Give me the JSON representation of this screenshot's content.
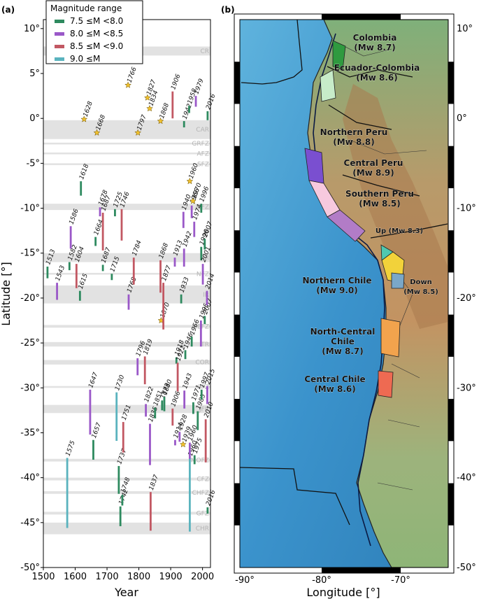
{
  "panel_a_label": "(a)",
  "panel_b_label": "(b)",
  "chart_data": [
    {
      "type": "bar",
      "xlabel": "Year",
      "ylabel": "Latitude [°]",
      "xlim": [
        1500,
        2025
      ],
      "ylim": [
        -50,
        11
      ],
      "x_ticks": [
        1500,
        1600,
        1700,
        1800,
        1900,
        2000
      ],
      "y_ticks": [
        {
          "v": 10,
          "t": "10°"
        },
        {
          "v": 5,
          "t": "5°"
        },
        {
          "v": 0,
          "t": "0°"
        },
        {
          "v": -5,
          "t": "-5°"
        },
        {
          "v": -10,
          "t": "-10°"
        },
        {
          "v": -15,
          "t": "-15°"
        },
        {
          "v": -20,
          "t": "-20°"
        },
        {
          "v": -25,
          "t": "-25°"
        },
        {
          "v": -30,
          "t": "-30°"
        },
        {
          "v": -35,
          "t": "-35°"
        },
        {
          "v": -40,
          "t": "-40°"
        },
        {
          "v": -45,
          "t": "-45°"
        },
        {
          "v": -50,
          "t": "-50°"
        }
      ],
      "legend_title": "Magnitude range",
      "legend_position": "top-left",
      "magnitude_classes": [
        {
          "label": "7.5 ≤M <8.0",
          "color": "#2e8a5f"
        },
        {
          "label": "8.0 ≤M <8.5",
          "color": "#9a58c8"
        },
        {
          "label": "8.5 ≤M <9.0",
          "color": "#c25863"
        },
        {
          "label": "9.0 ≤M",
          "color": "#5ab3be"
        }
      ],
      "zones": [
        {
          "name": "CR",
          "from": 8.0,
          "to": 7.0
        },
        {
          "name": "CAR",
          "from": -0.2,
          "to": -2.3
        },
        {
          "name": "GRFZ",
          "from": -2.7,
          "to": -2.9
        },
        {
          "name": "AFZ",
          "from": -3.8,
          "to": -4.0
        },
        {
          "name": "SFZ",
          "from": -5.0,
          "to": -5.2
        },
        {
          "name": "MFZ",
          "from": -9.5,
          "to": -10.2
        },
        {
          "name": "NR",
          "from": -15.0,
          "to": -16.0
        },
        {
          "name": "NFZ",
          "from": -17.2,
          "to": -17.4
        },
        {
          "name": "IR",
          "from": -18.6,
          "to": -20.6
        },
        {
          "name": "MEFZ",
          "from": -23.0,
          "to": -23.3
        },
        {
          "name": "TR",
          "from": -24.9,
          "to": -25.4
        },
        {
          "name": "COR",
          "from": -26.9,
          "to": -27.4
        },
        {
          "name": "CFZ",
          "from": -29.8,
          "to": -30.0
        },
        {
          "name": "JFR",
          "from": -31.9,
          "to": -32.8
        },
        {
          "name": "MOFZ",
          "from": -37.9,
          "to": -38.2
        },
        {
          "name": "CFZ",
          "from": -40.0,
          "to": -40.3
        },
        {
          "name": "CHFZ",
          "from": -41.5,
          "to": -41.8
        },
        {
          "name": "GFZ",
          "from": -43.8,
          "to": -44.1
        },
        {
          "name": "CHR",
          "from": -45.0,
          "to": -46.3
        }
      ],
      "events": [
        {
          "year": 1513,
          "lat_top": -16.5,
          "lat_bot": -17.8,
          "mag_class": 0,
          "label": "1513"
        },
        {
          "year": 1543,
          "lat_top": -18.3,
          "lat_bot": -20.2,
          "mag_class": 1,
          "label": "1543"
        },
        {
          "year": 1575,
          "lat_top": -37.8,
          "lat_bot": -45.6,
          "mag_class": 3,
          "label": "1575"
        },
        {
          "year": 1582,
          "lat_top": -16.0,
          "lat_bot": -16.9,
          "mag_class": 0,
          "label": "1582"
        },
        {
          "year": 1586,
          "lat_top": -12.0,
          "lat_bot": -14.5,
          "mag_class": 1,
          "label": "1586"
        },
        {
          "year": 1604,
          "lat_top": -16.2,
          "lat_bot": -18.9,
          "mag_class": 2,
          "label": "1604"
        },
        {
          "year": 1615,
          "lat_top": -19.2,
          "lat_bot": -20.3,
          "mag_class": 0,
          "label": "1615"
        },
        {
          "year": 1618,
          "lat_top": -7.0,
          "lat_bot": -8.6,
          "mag_class": 0,
          "label": "1618"
        },
        {
          "year": 1628,
          "lat": -0.1,
          "star": true,
          "label": "1628"
        },
        {
          "year": 1647,
          "lat_top": -30.2,
          "lat_bot": -35.2,
          "mag_class": 1,
          "label": "1647"
        },
        {
          "year": 1657,
          "lat_top": -35.8,
          "lat_bot": -38.0,
          "mag_class": 0,
          "label": "1657"
        },
        {
          "year": 1664,
          "lat_top": -13.2,
          "lat_bot": -14.2,
          "mag_class": 0,
          "label": "1664"
        },
        {
          "year": 1668,
          "lat": -1.6,
          "star": true,
          "label": "1668"
        },
        {
          "year": 1678,
          "lat_top": -9.9,
          "lat_bot": -10.9,
          "mag_class": 1,
          "label": "1678"
        },
        {
          "year": 1687,
          "lat_top": -10.5,
          "lat_bot": -14.7,
          "mag_class": 2,
          "label": "1687"
        },
        {
          "year": 1687,
          "lat_top": -16.3,
          "lat_bot": -17.0,
          "mag_class": 0,
          "label": "1687"
        },
        {
          "year": 1715,
          "lat_top": -17.3,
          "lat_bot": -18.0,
          "mag_class": 0,
          "label": "1715"
        },
        {
          "year": 1725,
          "lat_top": -10.1,
          "lat_bot": -10.9,
          "mag_class": 0,
          "label": "1725"
        },
        {
          "year": 1730,
          "lat_top": -30.5,
          "lat_bot": -35.9,
          "mag_class": 3,
          "label": "1730"
        },
        {
          "year": 1737,
          "lat_top": -38.7,
          "lat_bot": -41.8,
          "mag_class": 0,
          "label": "1737"
        },
        {
          "year": 1742,
          "lat_top": -43.2,
          "lat_bot": -45.4,
          "mag_class": 0,
          "label": "1742"
        },
        {
          "year": 1746,
          "lat_top": -10.1,
          "lat_bot": -13.6,
          "mag_class": 2,
          "label": "1746"
        },
        {
          "year": 1748,
          "lat_top": -41.9,
          "lat_bot": -43.1,
          "mag_class": 0,
          "label": "1748"
        },
        {
          "year": 1751,
          "lat_top": -33.8,
          "lat_bot": -37.2,
          "mag_class": 2,
          "label": "1751"
        },
        {
          "year": 1766,
          "lat": 3.7,
          "star": true,
          "label": "1766"
        },
        {
          "year": 1768,
          "lat_top": -19.6,
          "lat_bot": -21.3,
          "mag_class": 1,
          "label": "1768"
        },
        {
          "year": 1784,
          "lat_top": -15.5,
          "lat_bot": -18.5,
          "mag_class": 2,
          "label": "1784"
        },
        {
          "year": 1796,
          "lat_top": -26.7,
          "lat_bot": -28.6,
          "mag_class": 1,
          "label": "1796"
        },
        {
          "year": 1797,
          "lat": -1.6,
          "star": true,
          "label": "1797"
        },
        {
          "year": 1819,
          "lat_top": -26.5,
          "lat_bot": -29.6,
          "mag_class": 2,
          "label": "1819"
        },
        {
          "year": 1822,
          "lat_top": -31.8,
          "lat_bot": -33.2,
          "mag_class": 1,
          "label": "1822"
        },
        {
          "year": 1827,
          "lat": 2.3,
          "star": true,
          "label": "1827"
        },
        {
          "year": 1834,
          "lat": 1.1,
          "star": true,
          "label": "1834"
        },
        {
          "year": 1835,
          "lat_top": -34.0,
          "lat_bot": -38.6,
          "mag_class": 1,
          "label": "1835"
        },
        {
          "year": 1837,
          "lat_top": -41.6,
          "lat_bot": -45.9,
          "mag_class": 2,
          "label": "1837"
        },
        {
          "year": 1851,
          "lat_top": -32.2,
          "lat_bot": -33.4,
          "mag_class": 0,
          "label": "1851"
        },
        {
          "year": 1868,
          "lat": -0.3,
          "star": true,
          "label": "1868"
        },
        {
          "year": 1868,
          "lat_top": -15.8,
          "lat_bot": -19.4,
          "mag_class": 2,
          "label": "1868"
        },
        {
          "year": 1870,
          "lat": -22.5,
          "star": true,
          "label": "1870"
        },
        {
          "year": 1873,
          "lat_top": -31.4,
          "lat_bot": -32.5,
          "mag_class": 0,
          "label": "1873"
        },
        {
          "year": 1877,
          "lat_top": -18.3,
          "lat_bot": -23.5,
          "mag_class": 2,
          "label": "1877"
        },
        {
          "year": 1880,
          "lat_top": -31.0,
          "lat_bot": -32.6,
          "mag_class": 0,
          "label": "1880"
        },
        {
          "year": 1906,
          "lat_top": 3.0,
          "lat_bot": 0.0,
          "mag_class": 2,
          "label": "1906"
        },
        {
          "year": 1906,
          "lat_top": -32.3,
          "lat_bot": -34.2,
          "mag_class": 2,
          "label": "1906"
        },
        {
          "year": 1913,
          "lat_top": -15.5,
          "lat_bot": -16.5,
          "mag_class": 1,
          "label": "1913"
        },
        {
          "year": 1914,
          "lat_top": -35.8,
          "lat_bot": -36.4,
          "mag_class": 1,
          "label": "1914"
        },
        {
          "year": 1918,
          "lat_top": -26.6,
          "lat_bot": -27.3,
          "mag_class": 0,
          "label": "1918"
        },
        {
          "year": 1922,
          "lat_top": -27.2,
          "lat_bot": -30.4,
          "mag_class": 2,
          "label": "1922"
        },
        {
          "year": 1928,
          "lat_top": -34.9,
          "lat_bot": -36.0,
          "mag_class": 1,
          "label": "1928"
        },
        {
          "year": 1933,
          "lat_top": -19.6,
          "lat_bot": -20.6,
          "mag_class": 0,
          "label": "1933"
        },
        {
          "year": 1939,
          "lat": -36.3,
          "star": true,
          "label": "1939"
        },
        {
          "year": 1940,
          "lat_top": -10.4,
          "lat_bot": -12.2,
          "mag_class": 1,
          "label": "1940"
        },
        {
          "year": 1942,
          "lat_top": -14.5,
          "lat_bot": -16.5,
          "mag_class": 1,
          "label": "1942"
        },
        {
          "year": 1942,
          "lat_top": -1.0,
          "lat_bot": -0.3,
          "mag_class": 0,
          "label": "1942"
        },
        {
          "year": 1943,
          "lat_top": -30.3,
          "lat_bot": -32.3,
          "mag_class": 1,
          "label": "1943"
        },
        {
          "year": 1946,
          "lat_top": -25.8,
          "lat_bot": -26.8,
          "mag_class": 0,
          "label": "1946"
        },
        {
          "year": 1958,
          "lat_top": 1.4,
          "lat_bot": 0.6,
          "mag_class": 0,
          "label": "1958"
        },
        {
          "year": 1960,
          "lat": -7.0,
          "star": true,
          "label": "1960"
        },
        {
          "year": 1960,
          "lat_top": -37.8,
          "lat_bot": -46.0,
          "mag_class": 3,
          "label": "1960"
        },
        {
          "year": 1960,
          "lat_top": -36.1,
          "lat_bot": -37.9,
          "mag_class": 1,
          "label": "1960"
        },
        {
          "year": 1966,
          "lat_top": -9.7,
          "lat_bot": -11.1,
          "mag_class": 1,
          "label": "1966"
        },
        {
          "year": 1966,
          "lat_top": -24.3,
          "lat_bot": -25.4,
          "mag_class": 0,
          "label": "1966"
        },
        {
          "year": 1970,
          "lat": -9.2,
          "star": true,
          "label": "1970"
        },
        {
          "year": 1971,
          "lat_top": -31.6,
          "lat_bot": -32.9,
          "mag_class": 0,
          "label": "1971"
        },
        {
          "year": 1974,
          "lat_top": -11.5,
          "lat_bot": -13.2,
          "mag_class": 1,
          "label": "1974"
        },
        {
          "year": 1975,
          "lat_top": -37.5,
          "lat_bot": -38.5,
          "mag_class": 0,
          "label": "1975"
        },
        {
          "year": 1979,
          "lat_top": 2.5,
          "lat_bot": 1.3,
          "mag_class": 1,
          "label": "1979"
        },
        {
          "year": 1985,
          "lat_top": -32.6,
          "lat_bot": -34.7,
          "mag_class": 0,
          "label": "1985"
        },
        {
          "year": 1995,
          "lat_top": -22.5,
          "lat_bot": -25.4,
          "mag_class": 1,
          "label": "1995"
        },
        {
          "year": 1996,
          "lat_top": -9.5,
          "lat_bot": -10.5,
          "mag_class": 0,
          "label": "1996"
        },
        {
          "year": 1996,
          "lat_top": -14.3,
          "lat_bot": -15.8,
          "mag_class": 0,
          "label": "1996"
        },
        {
          "year": 1997,
          "lat_top": -30.2,
          "lat_bot": -31.3,
          "mag_class": 0,
          "label": "1997"
        },
        {
          "year": 2001,
          "lat_top": -16.2,
          "lat_bot": -18.5,
          "mag_class": 1,
          "label": "2001"
        },
        {
          "year": 2007,
          "lat_top": -13.4,
          "lat_bot": -14.6,
          "mag_class": 0,
          "label": "2007"
        },
        {
          "year": 2007,
          "lat_top": -22.0,
          "lat_bot": -22.9,
          "mag_class": 0,
          "label": "2007"
        },
        {
          "year": 2010,
          "lat_top": -33.5,
          "lat_bot": -38.3,
          "mag_class": 2,
          "label": "2010"
        },
        {
          "year": 2014,
          "lat_top": -19.2,
          "lat_bot": -20.8,
          "mag_class": 1,
          "label": "2014"
        },
        {
          "year": 2015,
          "lat_top": -29.8,
          "lat_bot": -31.8,
          "mag_class": 1,
          "label": "2015"
        },
        {
          "year": 2016,
          "lat_top": -0.2,
          "lat_bot": 0.8,
          "mag_class": 0,
          "label": "2016"
        },
        {
          "year": 2016,
          "lat_top": -43.3,
          "lat_bot": -44.0,
          "mag_class": 0,
          "label": "2016"
        }
      ]
    },
    {
      "type": "map",
      "xlabel": "Longitude [°]",
      "x_ticks": [
        "-90°",
        "-80°",
        "-70°"
      ],
      "y_ticks_right": [
        "10°",
        "5°",
        "0°",
        "-5°",
        "-10°",
        "-15°",
        "-20°",
        "-25°",
        "-30°",
        "-35°",
        "-40°",
        "-45°",
        "-50°"
      ],
      "segments": [
        {
          "lines": [
            "Colombia",
            "(Mw 8.7)"
          ],
          "color": "#2f9a3f"
        },
        {
          "lines": [
            "Ecuador-Colombia",
            "(Mw 8.6)"
          ],
          "color": "#c7ecc9"
        },
        {
          "lines": [
            "Northern Peru",
            "(Mw 8.8)"
          ],
          "color": "#7a4fd0"
        },
        {
          "lines": [
            "Central Peru",
            "(Mw 8.9)"
          ],
          "color": "#f7c9de"
        },
        {
          "lines": [
            "Southern Peru",
            "(Mw 8.5)"
          ],
          "color": "#b27cc7"
        },
        {
          "lines": [
            "Up (Mw 8.3)"
          ],
          "color": "#4fc8b0"
        },
        {
          "lines": [
            "Northern Chile",
            "(Mw 9.0)"
          ],
          "color": "#f2d23a"
        },
        {
          "lines": [
            "Down",
            "(Mw 8.5)"
          ],
          "color": "#7aa7c8"
        },
        {
          "lines": [
            "North-Central",
            "Chile",
            "(Mw 8.7)"
          ],
          "color": "#f2a34d"
        },
        {
          "lines": [
            "Central Chile",
            "(Mw 8.6)"
          ],
          "color": "#ee6a52"
        }
      ]
    }
  ]
}
